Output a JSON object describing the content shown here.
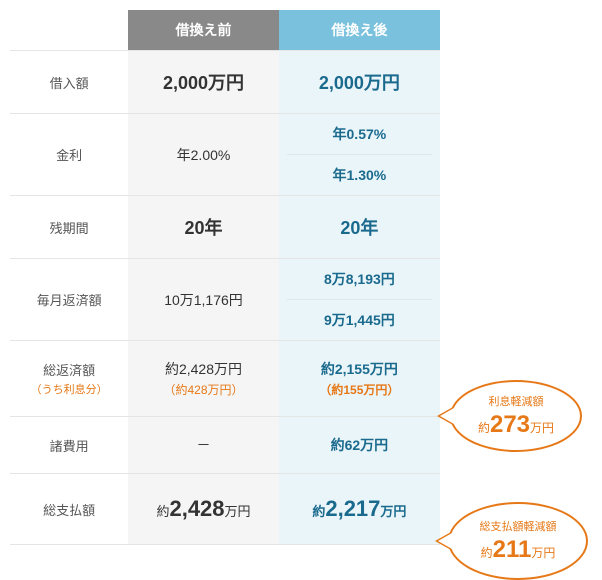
{
  "colors": {
    "header_before_bg": "#898989",
    "header_after_bg": "#7ac1dd",
    "before_bg": "#f5f5f5",
    "after_bg": "#eaf5f9",
    "after_text": "#1a6a8e",
    "accent": "#e67817",
    "border": "#e5e5e5"
  },
  "headers": {
    "before": "借換え前",
    "after": "借換え後"
  },
  "rows": {
    "loan_amount": {
      "label": "借入額",
      "before": "2,000万円",
      "after": "2,000万円"
    },
    "interest": {
      "label": "金利",
      "before": "年2.00%",
      "after_1": "年0.57%",
      "after_2": "年1.30%"
    },
    "remaining": {
      "label": "残期間",
      "before": "20年",
      "after": "20年"
    },
    "monthly": {
      "label": "毎月返済額",
      "before": "10万1,176円",
      "after_1": "8万8,193円",
      "after_2": "9万1,445円"
    },
    "total_repay": {
      "label": "総返済額",
      "sublabel": "（うち利息分）",
      "before": "約2,428万円",
      "before_sub": "（約428万円）",
      "after": "約2,155万円",
      "after_sub": "（約155万円）"
    },
    "fees": {
      "label": "諸費用",
      "before": "－",
      "after": "約62万円"
    },
    "total_pay": {
      "label": "総支払額",
      "before_pre": "約",
      "before_num": "2,428",
      "before_suf": "万円",
      "after_pre": "約",
      "after_num": "2,217",
      "after_suf": "万円"
    }
  },
  "callouts": {
    "interest_saving": {
      "label": "利息軽減額",
      "pre": "約",
      "num": "273",
      "suf": "万円"
    },
    "total_saving": {
      "label": "総支払額軽減額",
      "pre": "約",
      "num": "211",
      "suf": "万円"
    }
  }
}
